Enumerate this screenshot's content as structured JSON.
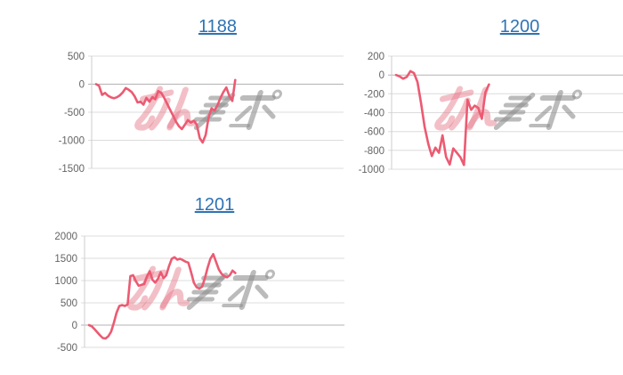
{
  "page": {
    "background": "#ffffff",
    "watermark_text": "みんレポ"
  },
  "styles": {
    "line_color": "#ec5a72",
    "grid_color": "#dcdcdc",
    "zero_line_color": "#b3b3b3",
    "axis_color": "#cccccc",
    "tick_label_color": "#646464",
    "title_link_color": "#2e73b4",
    "watermark_pink": "#e77f90",
    "watermark_gray": "#8d8d8d"
  },
  "chart_data": [
    {
      "type": "line",
      "title": "1188",
      "ylim": [
        -1500,
        500
      ],
      "yticks": [
        500,
        0,
        -500,
        -1000,
        -1500
      ],
      "grid": true,
      "legend": "none",
      "x_span_fraction": 0.57,
      "values": [
        0,
        -30,
        -190,
        -155,
        -205,
        -235,
        -250,
        -233,
        -200,
        -148,
        -70,
        -100,
        -140,
        -215,
        -325,
        -313,
        -365,
        -245,
        -313,
        -228,
        -270,
        -122,
        -155,
        -245,
        -350,
        -455,
        -560,
        -670,
        -750,
        -800,
        -720,
        -640,
        -685,
        -650,
        -720,
        -960,
        -1040,
        -905,
        -590,
        -430,
        -470,
        -375,
        -245,
        -140,
        -58,
        -210,
        -300,
        75
      ]
    },
    {
      "type": "line",
      "title": "1200",
      "ylim": [
        -1000,
        200
      ],
      "yticks": [
        200,
        0,
        -200,
        -400,
        -600,
        -800,
        -1000
      ],
      "grid": true,
      "legend": "none",
      "x_span_fraction": 0.38,
      "values": [
        0,
        -15,
        -40,
        -20,
        40,
        20,
        -75,
        -300,
        -550,
        -730,
        -860,
        -770,
        -825,
        -640,
        -870,
        -950,
        -780,
        -825,
        -872,
        -955,
        -262,
        -370,
        -325,
        -350,
        -465,
        -185,
        -100
      ]
    },
    {
      "type": "line",
      "title": "1201",
      "ylim": [
        -500,
        2000
      ],
      "yticks": [
        2000,
        1500,
        1000,
        500,
        0,
        -500
      ],
      "grid": true,
      "legend": "none",
      "x_span_fraction": 0.58,
      "values": [
        0,
        -25,
        -90,
        -160,
        -230,
        -290,
        -300,
        -250,
        -150,
        50,
        280,
        430,
        450,
        430,
        465,
        1100,
        1120,
        985,
        885,
        905,
        920,
        1090,
        1210,
        1020,
        955,
        1040,
        1190,
        1055,
        1120,
        1325,
        1490,
        1525,
        1470,
        1490,
        1460,
        1425,
        1405,
        1190,
        955,
        850,
        820,
        865,
        1055,
        1290,
        1490,
        1595,
        1425,
        1255,
        1155,
        1100,
        1075,
        1120,
        1225,
        1170
      ]
    }
  ]
}
